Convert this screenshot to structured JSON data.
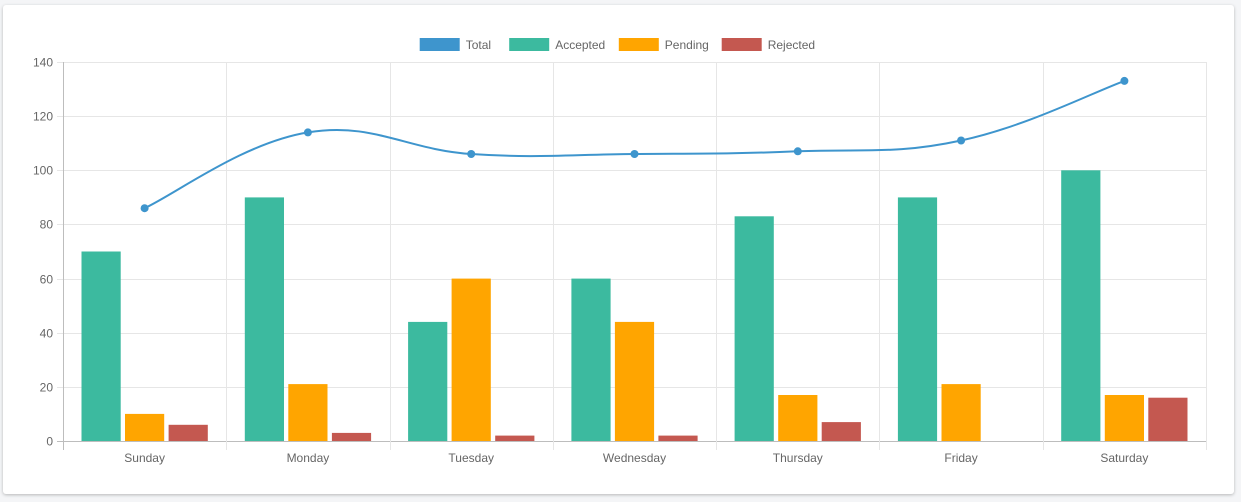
{
  "chart_data": {
    "type": "bar",
    "categories": [
      "Sunday",
      "Monday",
      "Tuesday",
      "Wednesday",
      "Thursday",
      "Friday",
      "Saturday"
    ],
    "series": [
      {
        "name": "Total",
        "type": "line",
        "color": "#3e95cd",
        "values": [
          86,
          114,
          106,
          106,
          107,
          111,
          133
        ]
      },
      {
        "name": "Accepted",
        "type": "bar",
        "color": "#3cba9f",
        "values": [
          70,
          90,
          44,
          60,
          83,
          90,
          100
        ]
      },
      {
        "name": "Pending",
        "type": "bar",
        "color": "#ffa500",
        "values": [
          10,
          21,
          60,
          44,
          17,
          21,
          17
        ]
      },
      {
        "name": "Rejected",
        "type": "bar",
        "color": "#c45850",
        "values": [
          6,
          3,
          2,
          2,
          7,
          0,
          16
        ]
      }
    ],
    "ylim": [
      0,
      140
    ],
    "yticks": [
      0,
      20,
      40,
      60,
      80,
      100,
      120,
      140
    ],
    "grid": true,
    "legend_position": "top-center",
    "title": "",
    "xlabel": "",
    "ylabel": ""
  }
}
